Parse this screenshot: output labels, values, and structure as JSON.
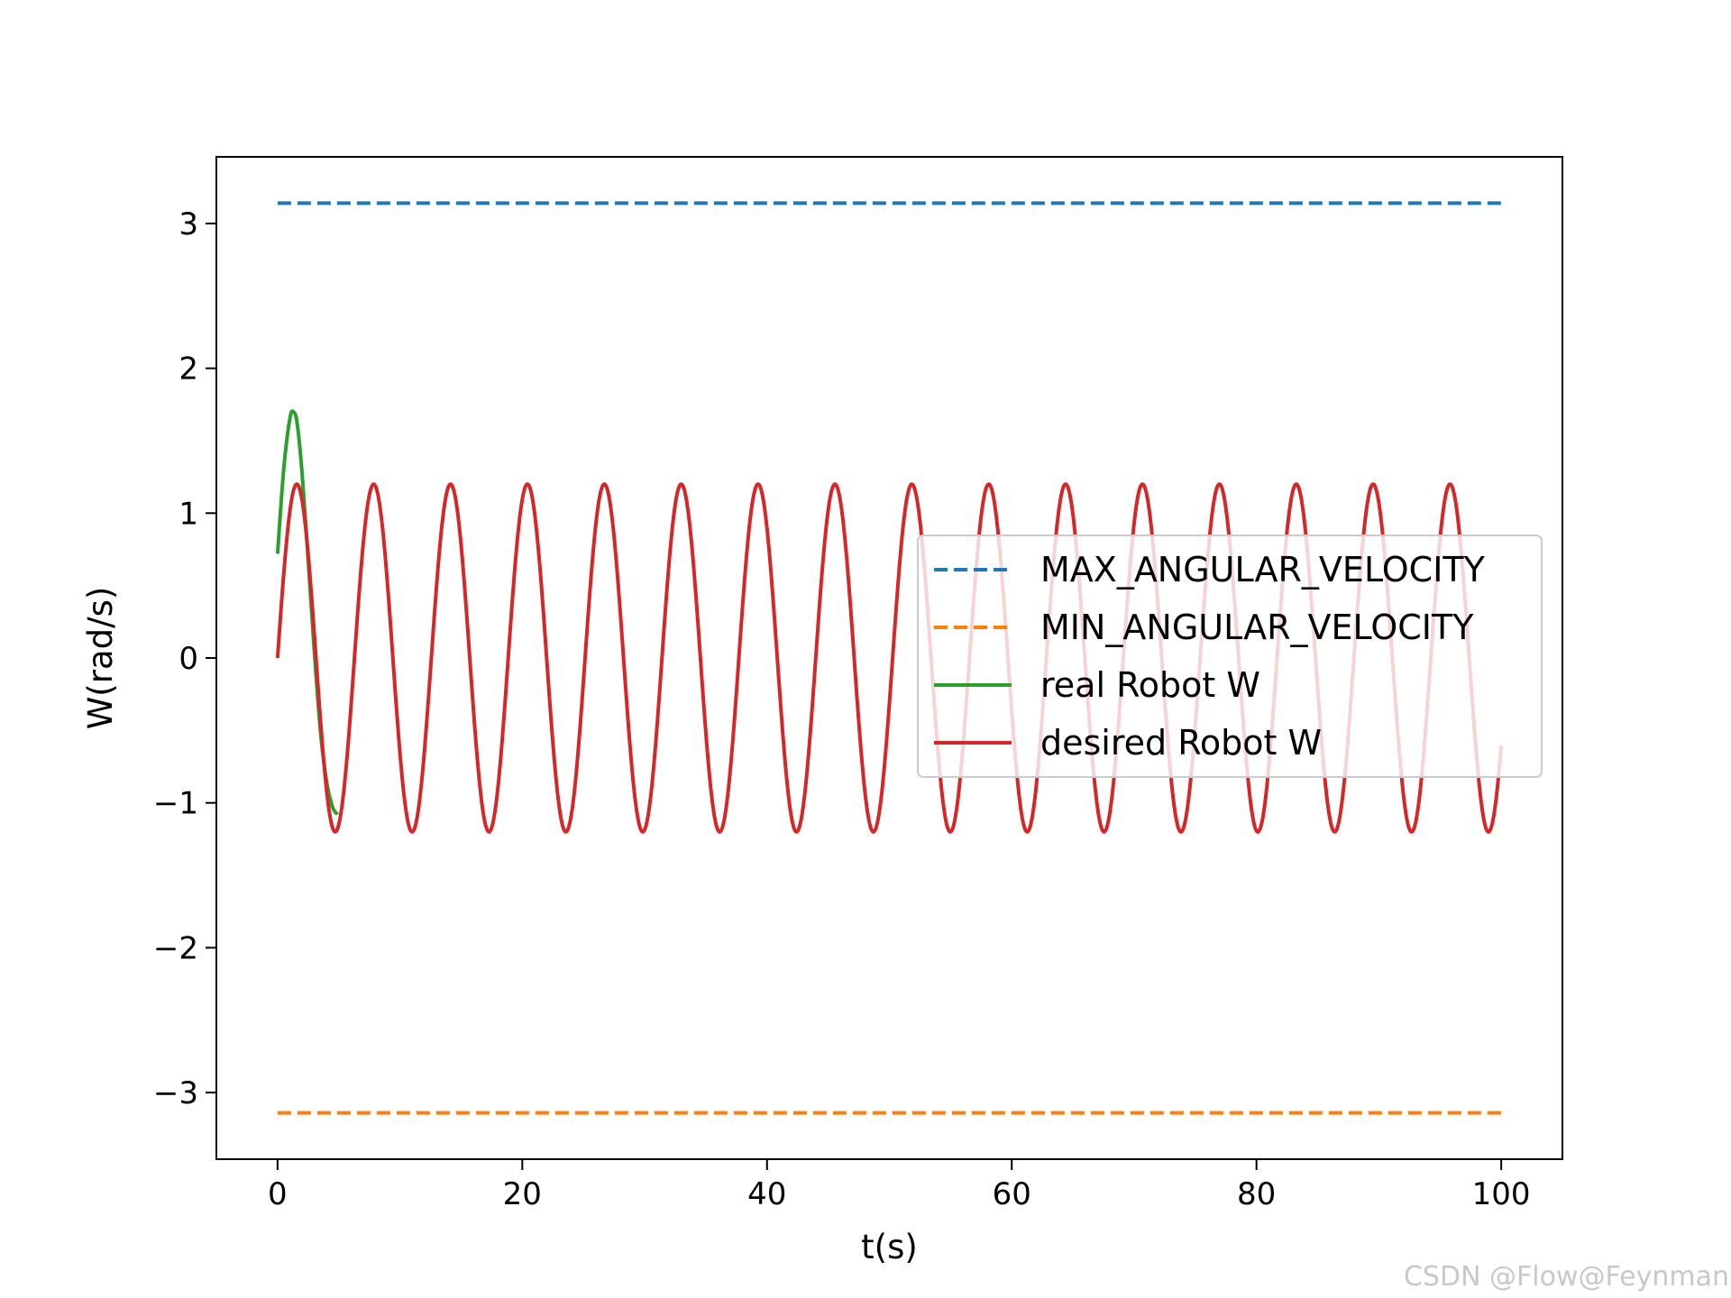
{
  "chart_data": {
    "type": "line",
    "title": "",
    "xlabel": "t(s)",
    "ylabel": "W(rad/s)",
    "xlim": [
      -5,
      105
    ],
    "ylim": [
      -3.46,
      3.46
    ],
    "grid": false,
    "legend_position": "center-right",
    "x_ticks": [
      0,
      20,
      40,
      60,
      80,
      100
    ],
    "y_ticks": [
      3,
      2,
      1,
      0,
      -1,
      -2,
      -3
    ],
    "y_tick_labels": [
      "3",
      "2",
      "1",
      "0",
      "−1",
      "−2",
      "−3"
    ],
    "series": [
      {
        "name": "MAX_ANGULAR_VELOCITY",
        "style": "dashed",
        "color": "#1f77b4",
        "x": [
          0,
          100
        ],
        "y": [
          3.14,
          3.14
        ]
      },
      {
        "name": "MIN_ANGULAR_VELOCITY",
        "style": "dashed",
        "color": "#ff7f0e",
        "x": [
          0,
          100
        ],
        "y": [
          -3.14,
          -3.14
        ]
      },
      {
        "name": "real Robot W",
        "style": "solid",
        "color": "#2ca02c",
        "x": [
          0,
          0.5,
          1.0,
          1.3,
          1.6,
          2.0,
          2.5,
          3.0,
          3.5,
          4.0,
          4.5,
          4.9
        ],
        "y": [
          0.72,
          1.3,
          1.65,
          1.7,
          1.62,
          1.28,
          0.68,
          0.05,
          -0.5,
          -0.85,
          -1.03,
          -1.08
        ]
      },
      {
        "name": "desired Robot W",
        "style": "solid",
        "color": "#d62728",
        "x_start": 0,
        "x_end": 100,
        "amplitude": 1.2,
        "period": 6.283
      }
    ]
  },
  "watermark": "CSDN @Flow@Feynman"
}
